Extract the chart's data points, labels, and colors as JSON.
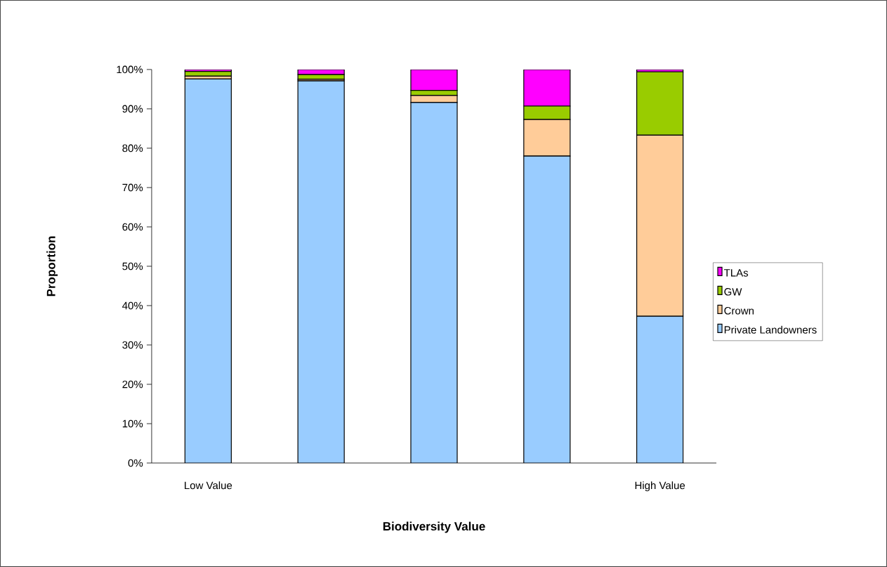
{
  "chart_data": {
    "type": "bar",
    "stacked": true,
    "xlabel": "Biodiversity Value",
    "ylabel": "Proportion",
    "categories": [
      "Low Value",
      null,
      null,
      null,
      "High Value"
    ],
    "series": [
      {
        "name": "Private Landowners",
        "color": "#99ccff",
        "values": [
          97.6,
          97.1,
          91.6,
          78.0,
          37.3
        ]
      },
      {
        "name": "Crown",
        "color": "#ffcc99",
        "values": [
          0.7,
          0.4,
          1.8,
          9.3,
          46.0
        ]
      },
      {
        "name": "GW",
        "color": "#99cc00",
        "values": [
          1.2,
          1.2,
          1.3,
          3.4,
          16.1
        ]
      },
      {
        "name": "TLAs",
        "color": "#ff00ff",
        "values": [
          0.5,
          1.3,
          5.3,
          9.3,
          0.6
        ]
      }
    ],
    "ylim": [
      0,
      100
    ],
    "yticks": [
      {
        "value": 0,
        "label": "0%"
      },
      {
        "value": 10,
        "label": "10%"
      },
      {
        "value": 20,
        "label": "20%"
      },
      {
        "value": 30,
        "label": "30%"
      },
      {
        "value": 40,
        "label": "40%"
      },
      {
        "value": 50,
        "label": "50%"
      },
      {
        "value": 60,
        "label": "60%"
      },
      {
        "value": 70,
        "label": "70%"
      },
      {
        "value": 80,
        "label": "80%"
      },
      {
        "value": 90,
        "label": "90%"
      },
      {
        "value": 100,
        "label": "100%"
      }
    ],
    "grid": false,
    "legend": "right"
  }
}
